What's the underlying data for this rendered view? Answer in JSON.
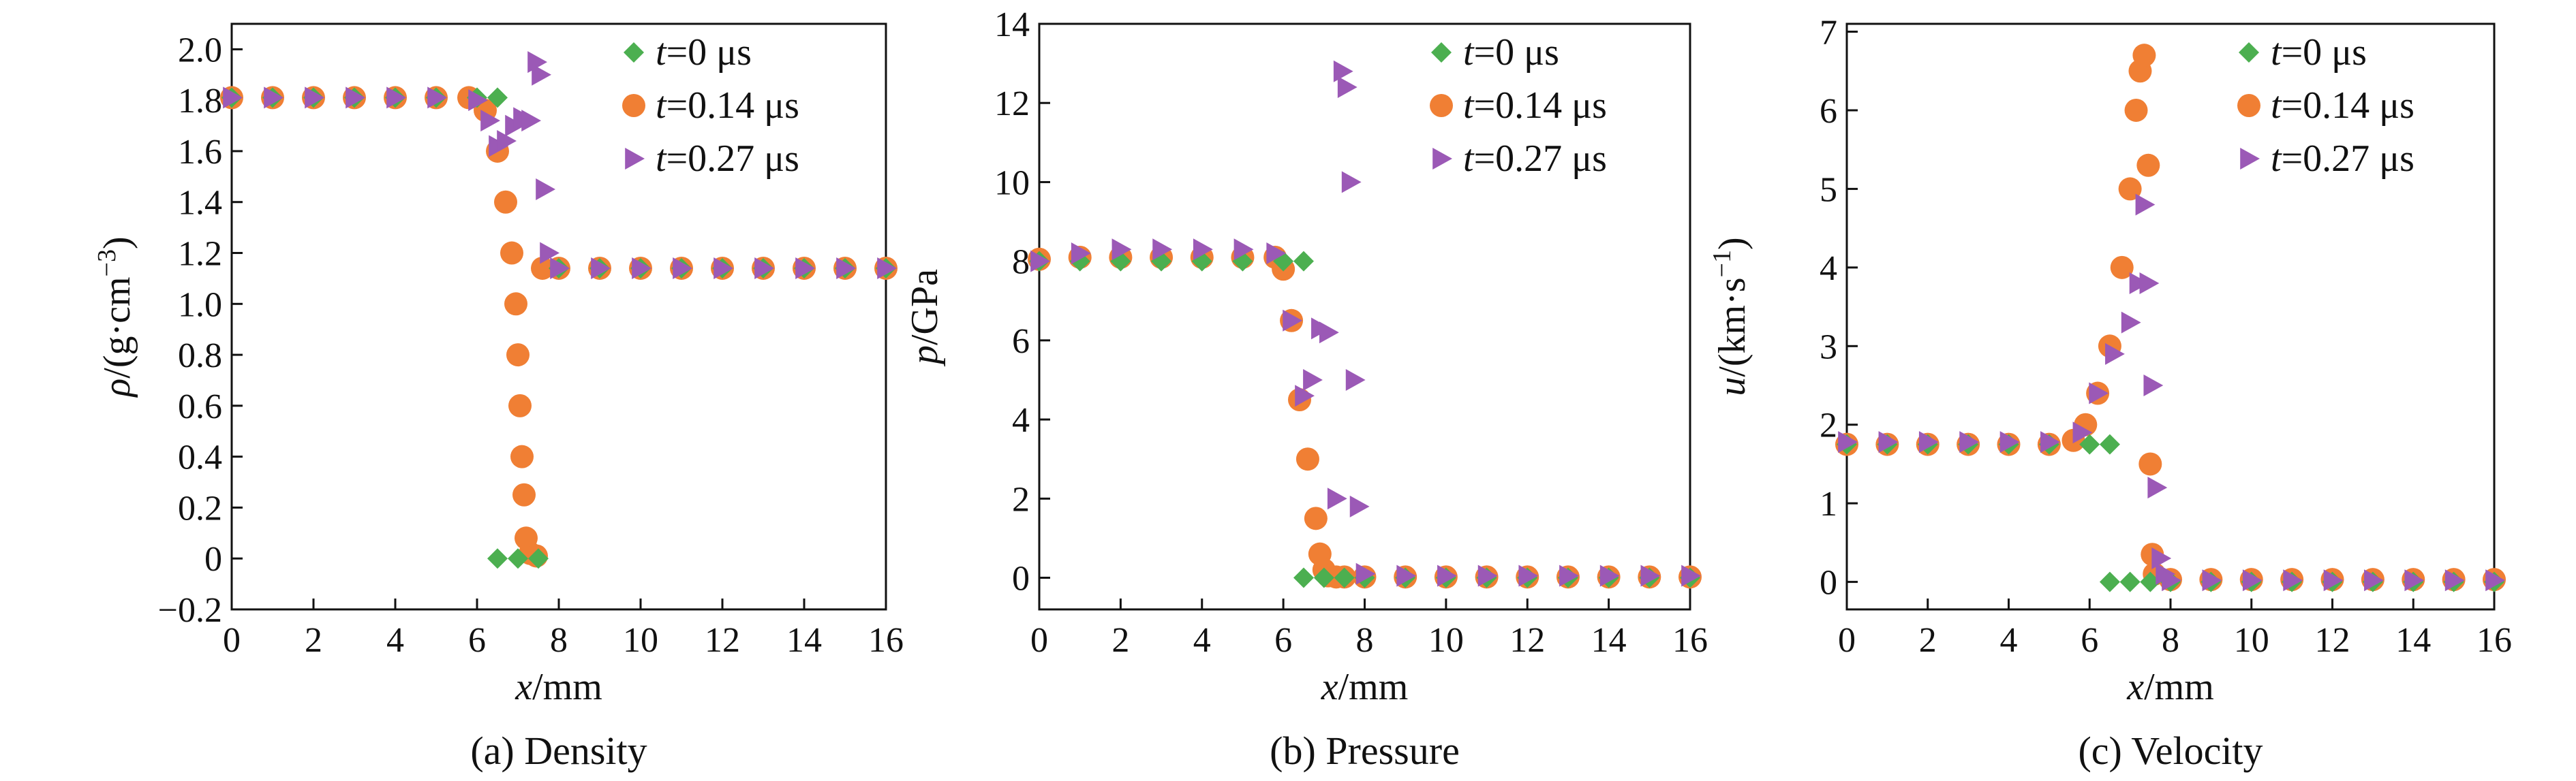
{
  "figure": {
    "series_legend": [
      {
        "key": "t0",
        "name": "t=0 μs",
        "t_label": "t",
        "rest_label": "=0 μs",
        "color": "#4caf50",
        "marker": "diamond"
      },
      {
        "key": "t14",
        "name": "t=0.14 μs",
        "t_label": "t",
        "rest_label": "=0.14 μs",
        "color": "#f07f34",
        "marker": "circle"
      },
      {
        "key": "t27",
        "name": "t=0.27 μs",
        "t_label": "t",
        "rest_label": "=0.27 μs",
        "color": "#9b59b6",
        "marker": "triangle-right"
      }
    ]
  },
  "chart_data": [
    {
      "type": "scatter",
      "caption": "(a) Density",
      "xlabel_var": "x",
      "xlabel_unit": "/mm",
      "ylabel_var": "ρ",
      "ylabel_unit": "/(g·cm",
      "ylabel_sup": "−3",
      "ylabel_tail": ")",
      "xlim": [
        0,
        16
      ],
      "ylim": [
        -0.2,
        2.1
      ],
      "xticks": [
        0,
        2,
        4,
        6,
        8,
        10,
        12,
        14,
        16
      ],
      "yticks": [
        -0.2,
        0,
        0.2,
        0.4,
        0.6,
        0.8,
        1.0,
        1.2,
        1.4,
        1.6,
        1.8,
        2.0
      ],
      "ytick_labels": [
        "−0.2",
        "0",
        "0.2",
        "0.4",
        "0.6",
        "0.8",
        "1.0",
        "1.2",
        "1.4",
        "1.6",
        "1.8",
        "2.0"
      ],
      "series": [
        {
          "key": "t0",
          "name": "t=0 μs",
          "x": [
            0,
            1,
            2,
            3,
            4,
            5,
            6,
            6.5,
            6.5,
            7,
            7.5,
            8,
            9,
            10,
            11,
            12,
            13,
            14,
            15,
            16
          ],
          "y": [
            1.81,
            1.81,
            1.81,
            1.81,
            1.81,
            1.81,
            1.81,
            1.81,
            0,
            0,
            0,
            1.14,
            1.14,
            1.14,
            1.14,
            1.14,
            1.14,
            1.14,
            1.14,
            1.14
          ]
        },
        {
          "key": "t14",
          "name": "t=0.14 μs",
          "x": [
            0,
            1,
            2,
            3,
            4,
            5,
            5.8,
            6.2,
            6.5,
            6.7,
            6.85,
            6.95,
            7.0,
            7.05,
            7.1,
            7.15,
            7.2,
            7.3,
            7.45,
            7.6,
            8,
            9,
            10,
            11,
            12,
            13,
            14,
            15,
            16
          ],
          "y": [
            1.81,
            1.81,
            1.81,
            1.81,
            1.81,
            1.81,
            1.81,
            1.76,
            1.6,
            1.4,
            1.2,
            1.0,
            0.8,
            0.6,
            0.4,
            0.25,
            0.08,
            0.02,
            0.01,
            1.14,
            1.14,
            1.14,
            1.14,
            1.14,
            1.14,
            1.14,
            1.14,
            1.14,
            1.14
          ]
        },
        {
          "key": "t27",
          "name": "t=0.27 μs",
          "x": [
            0,
            1,
            2,
            3,
            4,
            5,
            6,
            6.3,
            6.5,
            6.7,
            6.9,
            7.1,
            7.3,
            7.45,
            7.55,
            7.65,
            7.75,
            8,
            9,
            10,
            11,
            12,
            13,
            14,
            15,
            16
          ],
          "y": [
            1.81,
            1.81,
            1.81,
            1.81,
            1.81,
            1.81,
            1.8,
            1.72,
            1.62,
            1.64,
            1.7,
            1.73,
            1.72,
            1.95,
            1.9,
            1.45,
            1.2,
            1.14,
            1.14,
            1.14,
            1.14,
            1.14,
            1.14,
            1.14,
            1.14,
            1.14
          ]
        }
      ]
    },
    {
      "type": "scatter",
      "caption": "(b) Pressure",
      "xlabel_var": "x",
      "xlabel_unit": "/mm",
      "ylabel_var": "p",
      "ylabel_unit": "/GPa",
      "ylabel_sup": "",
      "ylabel_tail": "",
      "xlim": [
        0,
        16
      ],
      "ylim": [
        -0.8,
        14
      ],
      "xticks": [
        0,
        2,
        4,
        6,
        8,
        10,
        12,
        14,
        16
      ],
      "yticks": [
        0,
        2,
        4,
        6,
        8,
        10,
        12,
        14
      ],
      "ytick_labels": [
        "0",
        "2",
        "4",
        "6",
        "8",
        "10",
        "12",
        "14"
      ],
      "series": [
        {
          "key": "t0",
          "name": "t=0 μs",
          "x": [
            0,
            1,
            2,
            3,
            4,
            5,
            6,
            6.5,
            6.5,
            7,
            7.5,
            8,
            9,
            10,
            11,
            12,
            13,
            14,
            15,
            16
          ],
          "y": [
            8.0,
            8.0,
            8.0,
            8.0,
            8.0,
            8.0,
            8.0,
            8.0,
            0,
            0,
            0,
            0,
            0,
            0,
            0,
            0,
            0,
            0,
            0,
            0
          ]
        },
        {
          "key": "t14",
          "name": "t=0.14 μs",
          "x": [
            0,
            1,
            2,
            3,
            4,
            5,
            5.8,
            6.0,
            6.2,
            6.4,
            6.6,
            6.8,
            6.9,
            7.0,
            7.1,
            7.3,
            7.5,
            8,
            9,
            10,
            11,
            12,
            13,
            14,
            15,
            16
          ],
          "y": [
            8.05,
            8.1,
            8.1,
            8.1,
            8.1,
            8.1,
            8.1,
            7.8,
            6.5,
            4.5,
            3.0,
            1.5,
            0.6,
            0.2,
            0.05,
            0.02,
            0.02,
            0.02,
            0.02,
            0.02,
            0.02,
            0.02,
            0.02,
            0.02,
            0.02,
            0.02
          ]
        },
        {
          "key": "t27",
          "name": "t=0.27 μs",
          "x": [
            0,
            1,
            2,
            3,
            4,
            5,
            5.8,
            6.2,
            6.5,
            6.7,
            6.9,
            7.1,
            7.3,
            7.45,
            7.55,
            7.65,
            7.75,
            7.85,
            8,
            9,
            10,
            11,
            12,
            13,
            14,
            15,
            16
          ],
          "y": [
            8.0,
            8.2,
            8.3,
            8.3,
            8.3,
            8.3,
            8.2,
            6.5,
            4.6,
            5.0,
            6.3,
            6.2,
            2.0,
            12.8,
            12.4,
            10.0,
            5.0,
            1.8,
            0.1,
            0.05,
            0.05,
            0.05,
            0.05,
            0.05,
            0.05,
            0.05,
            0.05
          ]
        }
      ]
    },
    {
      "type": "scatter",
      "caption": "(c) Velocity",
      "xlabel_var": "x",
      "xlabel_unit": "/mm",
      "ylabel_var": "u",
      "ylabel_unit": "/(km·s",
      "ylabel_sup": "−1",
      "ylabel_tail": ")",
      "xlim": [
        0,
        16
      ],
      "ylim": [
        -0.35,
        7.1
      ],
      "xticks": [
        0,
        2,
        4,
        6,
        8,
        10,
        12,
        14,
        16
      ],
      "yticks": [
        0,
        1,
        2,
        3,
        4,
        5,
        6,
        7
      ],
      "ytick_labels": [
        "0",
        "1",
        "2",
        "3",
        "4",
        "5",
        "6",
        "7"
      ],
      "series": [
        {
          "key": "t0",
          "name": "t=0 μs",
          "x": [
            0,
            1,
            2,
            3,
            4,
            5,
            6,
            6.5,
            6.5,
            7,
            7.5,
            8,
            9,
            10,
            11,
            12,
            13,
            14,
            15,
            16
          ],
          "y": [
            1.75,
            1.75,
            1.75,
            1.75,
            1.75,
            1.75,
            1.75,
            1.75,
            0,
            0,
            0,
            0,
            0,
            0,
            0,
            0,
            0,
            0,
            0,
            0
          ]
        },
        {
          "key": "t14",
          "name": "t=0.14 μs",
          "x": [
            0,
            1,
            2,
            3,
            4,
            5,
            5.6,
            5.9,
            6.2,
            6.5,
            6.8,
            7.0,
            7.15,
            7.25,
            7.35,
            7.45,
            7.5,
            7.55,
            7.6,
            8,
            9,
            10,
            11,
            12,
            13,
            14,
            15,
            16
          ],
          "y": [
            1.75,
            1.75,
            1.75,
            1.75,
            1.75,
            1.75,
            1.8,
            2.0,
            2.4,
            3.0,
            4.0,
            5.0,
            6.0,
            6.5,
            6.7,
            5.3,
            1.5,
            0.35,
            0.1,
            0.03,
            0.03,
            0.03,
            0.03,
            0.03,
            0.03,
            0.03,
            0.03,
            0.03
          ]
        },
        {
          "key": "t27",
          "name": "t=0.27 μs",
          "x": [
            0,
            1,
            2,
            3,
            4,
            5,
            5.8,
            6.2,
            6.6,
            7.0,
            7.2,
            7.35,
            7.45,
            7.55,
            7.65,
            7.75,
            7.85,
            8,
            9,
            10,
            11,
            12,
            13,
            14,
            15,
            16
          ],
          "y": [
            1.78,
            1.78,
            1.78,
            1.78,
            1.78,
            1.78,
            1.9,
            2.4,
            2.9,
            3.3,
            3.8,
            4.8,
            3.8,
            2.5,
            1.2,
            0.3,
            0.1,
            0.02,
            0.02,
            0.02,
            0.02,
            0.02,
            0.02,
            0.02,
            0.02,
            0.02
          ]
        }
      ]
    }
  ]
}
